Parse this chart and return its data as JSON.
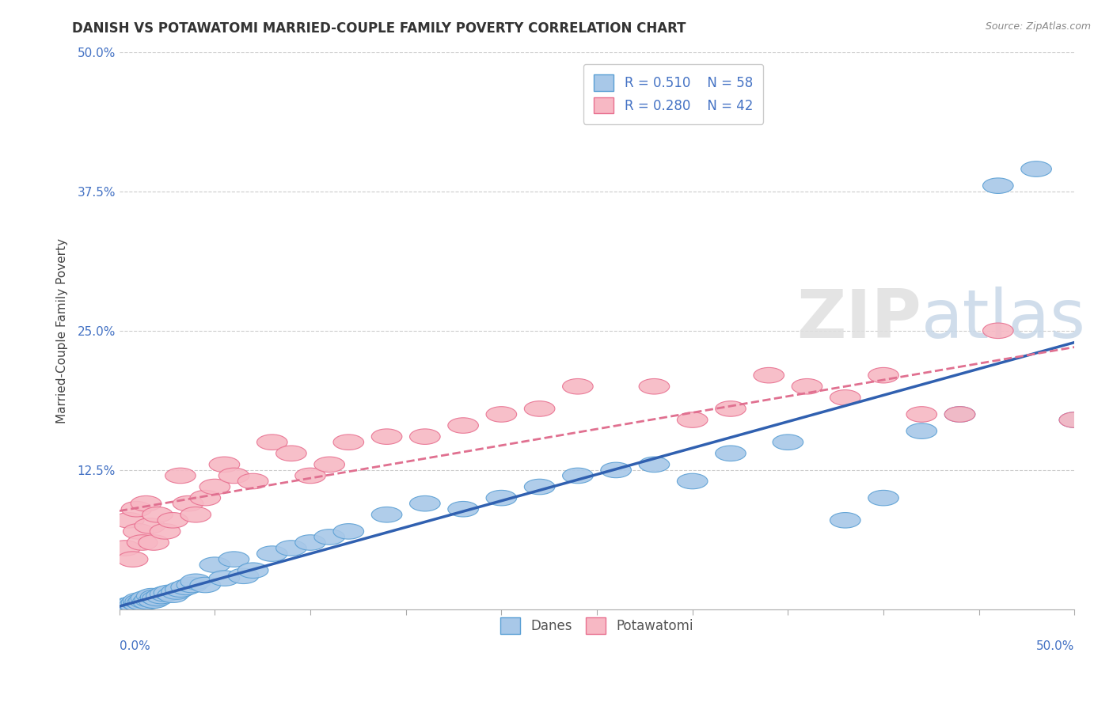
{
  "title": "DANISH VS POTAWATOMI MARRIED-COUPLE FAMILY POVERTY CORRELATION CHART",
  "source": "Source: ZipAtlas.com",
  "ylabel": "Married-Couple Family Poverty",
  "xlim": [
    0,
    0.5
  ],
  "ylim": [
    0,
    0.5
  ],
  "danes_color": "#a8c8e8",
  "danes_edge_color": "#5a9fd4",
  "potawatomi_color": "#f7b8c4",
  "potawatomi_edge_color": "#e87090",
  "danes_line_color": "#3060b0",
  "potawatomi_line_color": "#e07090",
  "danes_R": 0.51,
  "danes_N": 58,
  "potawatomi_R": 0.28,
  "potawatomi_N": 42,
  "danes_x": [
    0.002,
    0.003,
    0.004,
    0.005,
    0.006,
    0.007,
    0.008,
    0.009,
    0.01,
    0.01,
    0.011,
    0.012,
    0.013,
    0.014,
    0.015,
    0.016,
    0.017,
    0.018,
    0.019,
    0.02,
    0.022,
    0.024,
    0.026,
    0.028,
    0.03,
    0.032,
    0.035,
    0.038,
    0.04,
    0.045,
    0.05,
    0.055,
    0.06,
    0.065,
    0.07,
    0.08,
    0.09,
    0.1,
    0.11,
    0.12,
    0.14,
    0.16,
    0.18,
    0.2,
    0.22,
    0.24,
    0.26,
    0.28,
    0.3,
    0.32,
    0.35,
    0.38,
    0.4,
    0.42,
    0.44,
    0.46,
    0.48,
    0.5
  ],
  "danes_y": [
    0.002,
    0.003,
    0.003,
    0.004,
    0.003,
    0.005,
    0.004,
    0.006,
    0.005,
    0.008,
    0.007,
    0.006,
    0.008,
    0.01,
    0.007,
    0.009,
    0.012,
    0.008,
    0.011,
    0.01,
    0.012,
    0.014,
    0.015,
    0.013,
    0.016,
    0.018,
    0.02,
    0.022,
    0.025,
    0.022,
    0.04,
    0.028,
    0.045,
    0.03,
    0.035,
    0.05,
    0.055,
    0.06,
    0.065,
    0.07,
    0.085,
    0.095,
    0.09,
    0.1,
    0.11,
    0.12,
    0.125,
    0.13,
    0.115,
    0.14,
    0.15,
    0.08,
    0.1,
    0.16,
    0.175,
    0.38,
    0.395,
    0.17
  ],
  "potawatomi_x": [
    0.003,
    0.005,
    0.007,
    0.009,
    0.01,
    0.012,
    0.014,
    0.016,
    0.018,
    0.02,
    0.024,
    0.028,
    0.032,
    0.036,
    0.04,
    0.045,
    0.05,
    0.055,
    0.06,
    0.07,
    0.08,
    0.09,
    0.1,
    0.11,
    0.12,
    0.14,
    0.16,
    0.18,
    0.2,
    0.22,
    0.24,
    0.28,
    0.3,
    0.32,
    0.34,
    0.36,
    0.38,
    0.4,
    0.42,
    0.44,
    0.46,
    0.5
  ],
  "potawatomi_y": [
    0.055,
    0.08,
    0.045,
    0.09,
    0.07,
    0.06,
    0.095,
    0.075,
    0.06,
    0.085,
    0.07,
    0.08,
    0.12,
    0.095,
    0.085,
    0.1,
    0.11,
    0.13,
    0.12,
    0.115,
    0.15,
    0.14,
    0.12,
    0.13,
    0.15,
    0.155,
    0.155,
    0.165,
    0.175,
    0.18,
    0.2,
    0.2,
    0.17,
    0.18,
    0.21,
    0.2,
    0.19,
    0.21,
    0.175,
    0.175,
    0.25,
    0.17
  ],
  "danes_line_x0": 0.0,
  "danes_line_y0": 0.005,
  "danes_line_x1": 0.5,
  "danes_line_y1": 0.23,
  "potawatomi_line_x0": 0.0,
  "potawatomi_line_y0": 0.085,
  "potawatomi_line_x1": 0.5,
  "potawatomi_line_y1": 0.22
}
